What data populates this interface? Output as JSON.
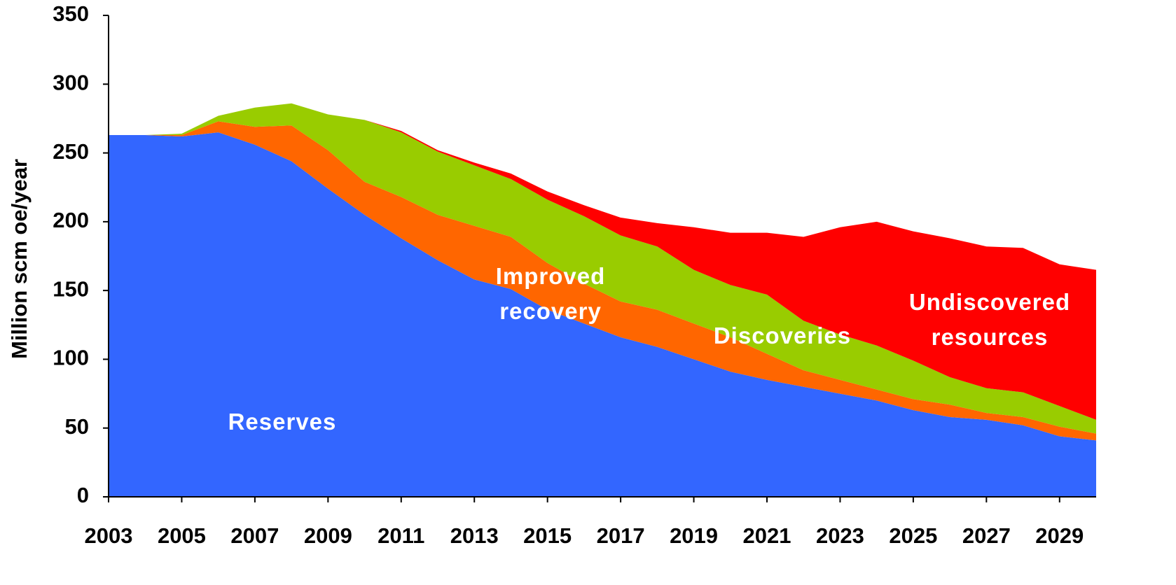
{
  "chart_data": {
    "type": "stacked_area",
    "y_label": "Million scm oe/year",
    "x": [
      2003,
      2004,
      2005,
      2006,
      2007,
      2008,
      2009,
      2010,
      2011,
      2012,
      2013,
      2014,
      2015,
      2016,
      2017,
      2018,
      2019,
      2020,
      2021,
      2022,
      2023,
      2024,
      2025,
      2026,
      2027,
      2028,
      2029,
      2030
    ],
    "series": [
      {
        "name": "Reserves",
        "color": "#3366ff",
        "values": [
          263,
          263,
          262,
          265,
          256,
          244,
          224,
          205,
          188,
          172,
          158,
          151,
          136,
          126,
          116,
          109,
          100,
          91,
          85,
          80,
          75,
          70,
          63,
          58,
          56,
          52,
          44,
          41
        ]
      },
      {
        "name": "Improved recovery",
        "color": "#ff6600",
        "values": [
          0,
          0,
          1,
          8,
          13,
          26,
          28,
          24,
          30,
          33,
          39,
          38,
          34,
          29,
          26,
          27,
          26,
          25,
          19,
          12,
          10,
          8,
          8,
          9,
          5,
          6,
          7,
          5
        ]
      },
      {
        "name": "Discoveries",
        "color": "#99cc00",
        "values": [
          0,
          0,
          1,
          4,
          14,
          16,
          26,
          45,
          47,
          46,
          44,
          42,
          46,
          49,
          48,
          46,
          39,
          38,
          43,
          36,
          33,
          32,
          28,
          20,
          18,
          18,
          15,
          10
        ]
      },
      {
        "name": "Undiscovered resources",
        "color": "#ff0000",
        "values": [
          0,
          0,
          0,
          0,
          0,
          0,
          0,
          0,
          1,
          1,
          2,
          4,
          6,
          8,
          13,
          17,
          31,
          38,
          45,
          61,
          78,
          90,
          94,
          101,
          103,
          105,
          103,
          109
        ]
      }
    ],
    "xlim": [
      2003,
      2030
    ],
    "xticks": [
      2003,
      2005,
      2007,
      2009,
      2011,
      2013,
      2015,
      2017,
      2019,
      2021,
      2023,
      2025,
      2027,
      2029
    ],
    "ylim": [
      0,
      350
    ],
    "yticks": [
      0,
      50,
      100,
      150,
      200,
      250,
      300,
      350
    ]
  }
}
